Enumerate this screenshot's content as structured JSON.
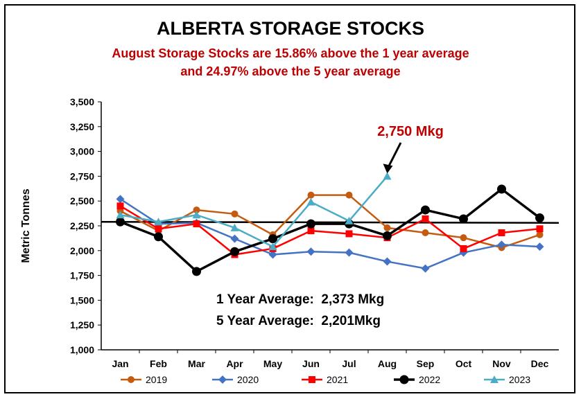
{
  "chart_data": {
    "type": "line",
    "title": "ALBERTA STORAGE STOCKS",
    "subtitle_lines": [
      "August Storage Stocks are 15.86% above the 1 year average",
      "and 24.97% above the 5 year average"
    ],
    "ylabel": "Metric Tonnes",
    "xlabel": "",
    "ylim": [
      1000,
      3500
    ],
    "yticks": [
      "1,000",
      "1,250",
      "1,500",
      "1,750",
      "2,000",
      "2,250",
      "2,500",
      "2,750",
      "3,000",
      "3,250",
      "3,500"
    ],
    "ytick_values": [
      1000,
      1250,
      1500,
      1750,
      2000,
      2250,
      2500,
      2750,
      3000,
      3250,
      3500
    ],
    "categories": [
      "Jan",
      "Feb",
      "Mar",
      "Apr",
      "May",
      "Jun",
      "Jul",
      "Aug",
      "Sep",
      "Oct",
      "Nov",
      "Dec"
    ],
    "legend_position": "bottom",
    "grid": false,
    "series": [
      {
        "name": "2019",
        "color": "#c55a11",
        "marker": "circle",
        "values": [
          2400,
          2200,
          2410,
          2370,
          2160,
          2560,
          2560,
          2230,
          2180,
          2130,
          2030,
          2160
        ]
      },
      {
        "name": "2020",
        "color": "#4472c4",
        "marker": "diamond",
        "values": [
          2520,
          2270,
          2280,
          2120,
          1960,
          1990,
          1980,
          1890,
          1820,
          1980,
          2060,
          2040
        ]
      },
      {
        "name": "2021",
        "color": "#ff0000",
        "marker": "square",
        "values": [
          2450,
          2220,
          2270,
          1960,
          2020,
          2200,
          2170,
          2130,
          2320,
          2020,
          2180,
          2220
        ]
      },
      {
        "name": "2022",
        "color": "#000000",
        "marker": "circle-big",
        "values": [
          2290,
          2140,
          1790,
          1990,
          2120,
          2270,
          2270,
          2150,
          2410,
          2320,
          2620,
          2330
        ]
      },
      {
        "name": "2023",
        "color": "#4bacc6",
        "marker": "triangle",
        "values": [
          2360,
          2290,
          2360,
          2230,
          2040,
          2490,
          2300,
          2750,
          null,
          null,
          null,
          null
        ]
      }
    ],
    "reference_line": {
      "y_start": 2290,
      "y_end": 2280,
      "color": "#000000"
    },
    "annotations": {
      "callout": {
        "text": "2,750 Mkg",
        "color": "#c00000",
        "target_month": "Aug",
        "target_value": 2750
      },
      "avg1": "1 Year Average:  2,373 Mkg",
      "avg5": "5 Year Average:  2,201Mkg"
    }
  }
}
